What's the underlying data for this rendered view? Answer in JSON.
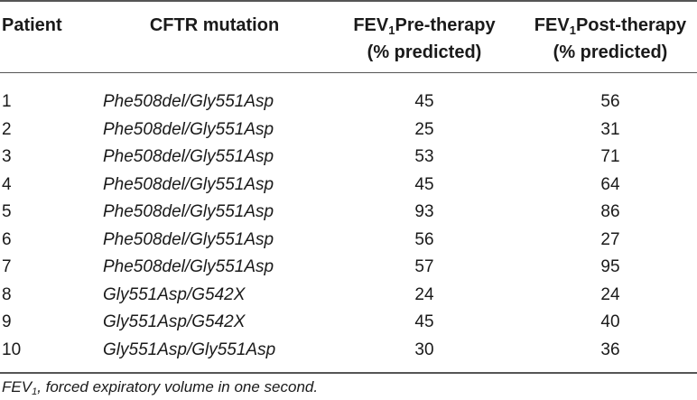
{
  "table": {
    "headers": {
      "patient": "Patient",
      "mutation": "CFTR mutation",
      "pre_prefix": "FEV",
      "pre_sub": "1",
      "pre_suffix": "Pre-therapy",
      "pre_unit": "(% predicted)",
      "post_prefix": "FEV",
      "post_sub": "1",
      "post_suffix": "Post-therapy",
      "post_unit": "(% predicted)"
    },
    "rows": [
      {
        "patient": "1",
        "mutation": "Phe508del/Gly551Asp",
        "pre": "45",
        "post": "56"
      },
      {
        "patient": "2",
        "mutation": "Phe508del/Gly551Asp",
        "pre": "25",
        "post": "31"
      },
      {
        "patient": "3",
        "mutation": "Phe508del/Gly551Asp",
        "pre": "53",
        "post": "71"
      },
      {
        "patient": "4",
        "mutation": "Phe508del/Gly551Asp",
        "pre": "45",
        "post": "64"
      },
      {
        "patient": "5",
        "mutation": "Phe508del/Gly551Asp",
        "pre": "93",
        "post": "86"
      },
      {
        "patient": "6",
        "mutation": "Phe508del/Gly551Asp",
        "pre": "56",
        "post": "27"
      },
      {
        "patient": "7",
        "mutation": "Phe508del/Gly551Asp",
        "pre": "57",
        "post": "95"
      },
      {
        "patient": "8",
        "mutation": "Gly551Asp/G542X",
        "pre": "24",
        "post": "24"
      },
      {
        "patient": "9",
        "mutation": "Gly551Asp/G542X",
        "pre": "45",
        "post": "40"
      },
      {
        "patient": "10",
        "mutation": "Gly551Asp/Gly551Asp",
        "pre": "30",
        "post": "36"
      }
    ]
  },
  "footnote": {
    "abbr": "FEV",
    "abbr_sub": "1",
    "text": ", forced expiratory volume in one second."
  }
}
